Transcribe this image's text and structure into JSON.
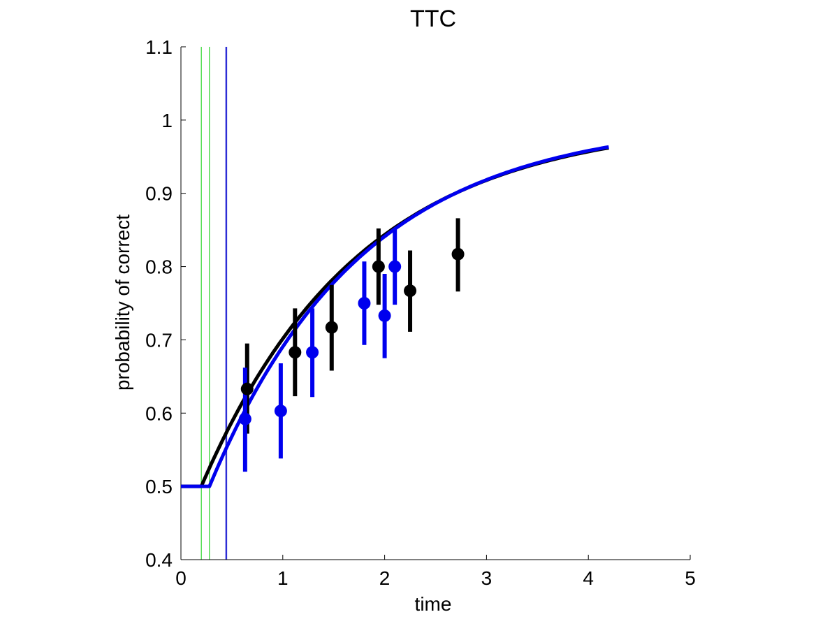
{
  "chart_data": {
    "type": "line",
    "title": "TTC",
    "xlabel": "time",
    "ylabel": "probability of correct",
    "xlim": [
      0,
      5
    ],
    "ylim": [
      0.4,
      1.1
    ],
    "xticks": [
      0,
      1,
      2,
      3,
      4,
      5
    ],
    "xtick_labels": [
      "0",
      "1",
      "2",
      "3",
      "4",
      "5"
    ],
    "yticks": [
      0.4,
      0.5,
      0.6,
      0.7,
      0.8,
      0.9,
      1.0,
      1.1
    ],
    "ytick_labels": [
      "0.4",
      "0.5",
      "0.6",
      "0.7",
      "0.8",
      "0.9",
      "1",
      "1.1"
    ],
    "grid": false,
    "legend": "none",
    "vertical_lines": [
      {
        "x": 0.2,
        "color": "#00cc00"
      },
      {
        "x": 0.28,
        "color": "#00cc00"
      },
      {
        "x": 0.44,
        "color": "#0000cc"
      },
      {
        "x": 0.45,
        "color": "#0000cc"
      }
    ],
    "series": [
      {
        "color": "#000000",
        "fit": {
          "plateau": 0.5,
          "onset": 0.2,
          "tau": 1.55,
          "x_end": 4.2
        },
        "points": [
          {
            "x": 0.65,
            "y": 0.633,
            "lo": 0.572,
            "hi": 0.695
          },
          {
            "x": 1.12,
            "y": 0.683,
            "lo": 0.623,
            "hi": 0.743
          },
          {
            "x": 1.48,
            "y": 0.717,
            "lo": 0.658,
            "hi": 0.775
          },
          {
            "x": 1.94,
            "y": 0.8,
            "lo": 0.748,
            "hi": 0.852
          },
          {
            "x": 2.25,
            "y": 0.767,
            "lo": 0.711,
            "hi": 0.822
          },
          {
            "x": 2.72,
            "y": 0.817,
            "lo": 0.766,
            "hi": 0.866
          }
        ]
      },
      {
        "color": "#0000ee",
        "fit": {
          "plateau": 0.5,
          "onset": 0.28,
          "tau": 1.5,
          "x_end": 4.2
        },
        "points": [
          {
            "x": 0.63,
            "y": 0.592,
            "lo": 0.52,
            "hi": 0.662
          },
          {
            "x": 0.98,
            "y": 0.603,
            "lo": 0.538,
            "hi": 0.668
          },
          {
            "x": 1.29,
            "y": 0.683,
            "lo": 0.622,
            "hi": 0.743
          },
          {
            "x": 1.8,
            "y": 0.75,
            "lo": 0.693,
            "hi": 0.807
          },
          {
            "x": 2.0,
            "y": 0.733,
            "lo": 0.675,
            "hi": 0.79
          },
          {
            "x": 2.1,
            "y": 0.8,
            "lo": 0.748,
            "hi": 0.852
          }
        ]
      }
    ]
  }
}
